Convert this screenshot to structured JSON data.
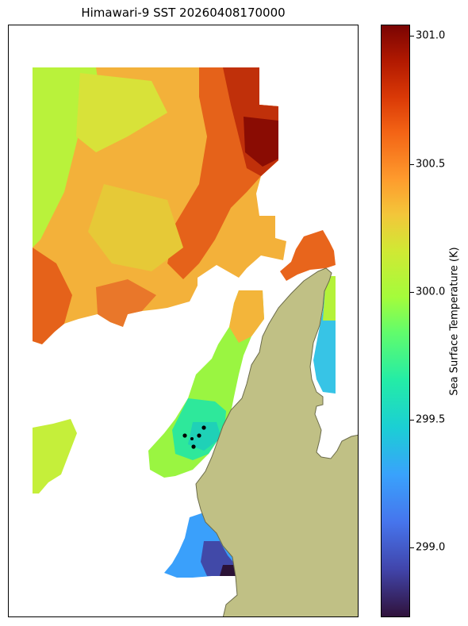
{
  "title": "Himawari-9 SST 20260408170000",
  "colorbar": {
    "label": "Sea Surface Temperature (K)",
    "ticks": [
      "301.0",
      "300.5",
      "300.0",
      "299.5",
      "299.0"
    ],
    "range": [
      298.7,
      301.1
    ],
    "colormap": "turbo"
  },
  "colors": {
    "land": "#c0c085",
    "coast": "#6b6b4a"
  },
  "markers": {
    "count": 5,
    "color": "#000000"
  }
}
